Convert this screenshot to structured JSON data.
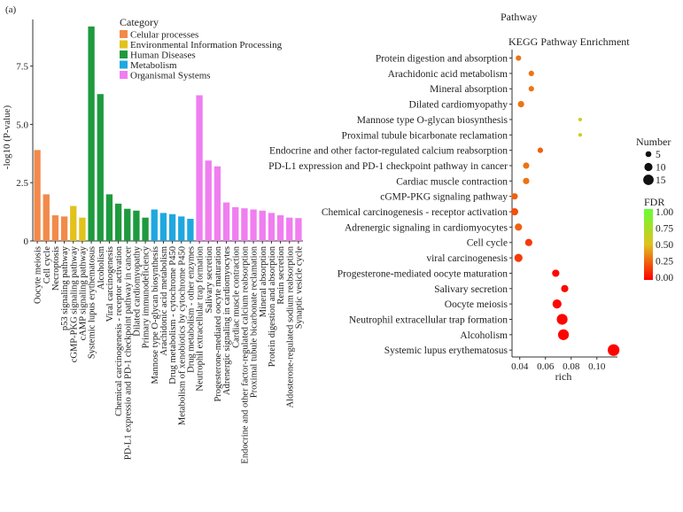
{
  "panel_label": "(a)",
  "colors": {
    "Celular processes": "#f28a4b",
    "Environmental Information Processing": "#e2c21b",
    "Human Diseases": "#1e9a3e",
    "Metabolism": "#1fa8e0",
    "Organismal Systems": "#f07ef0",
    "axis": "#333333"
  },
  "chart_data": [
    {
      "type": "bar",
      "ylabel": "-log10 (P-value)",
      "ylim": [
        0,
        9.5
      ],
      "yticks": [
        0,
        2.5,
        5.0,
        7.5
      ],
      "legend_title": "Category",
      "legend_position": "top",
      "grid": false,
      "categories": [
        "Oocyte meiosis",
        "Cell cycle",
        "Necroptosis",
        "p53 signaling pathway",
        "cGMP-PKG signaling pathway",
        "cAMP signaling pathway",
        "Systemic lupus erythematosus",
        "Alcoholism",
        "Viral carcinogenesis",
        "Chemical carcinogenesis - receptor activation",
        "PD-L1 expressio and PD-1 checkpoint pathway in cancer",
        "Dilated cardiomyopathy",
        "Primary immunodeficiency",
        "Mannose type O-glycan biosynthesis",
        "Arachidonic acid metabolism",
        "Drug metabolism - cytochrome P450",
        "Metabolism of xenobiotics by cytochrome P450",
        "Drug metabolism - other enzymes",
        "Neutrophil extracellular trap formation",
        "Salivary secretion",
        "Progesterone-mediated oocyte maturation",
        "Adrenergic signaling in cardiomyocytes",
        "Cardiac muscle contraction",
        "Endocrine and other factor-regulated calcium reabsorption",
        "Proximal tubule bicarbonate reclamation",
        "Mineral absorption",
        "Protein digestion and absorption",
        "Renin secretion",
        "Aldosterone-regulated sodium reabsorption",
        "Synaptic vesicle cycle"
      ],
      "values": [
        3.9,
        2.0,
        1.1,
        1.05,
        1.5,
        1.0,
        9.2,
        6.3,
        2.0,
        1.6,
        1.38,
        1.3,
        1.0,
        1.35,
        1.2,
        1.15,
        1.05,
        0.95,
        6.25,
        3.45,
        3.2,
        1.65,
        1.45,
        1.4,
        1.35,
        1.3,
        1.2,
        1.1,
        1.0,
        0.98
      ],
      "groups": [
        "Celular processes",
        "Celular processes",
        "Celular processes",
        "Celular processes",
        "Environmental Information Processing",
        "Environmental Information Processing",
        "Human Diseases",
        "Human Diseases",
        "Human Diseases",
        "Human Diseases",
        "Human Diseases",
        "Human Diseases",
        "Human Diseases",
        "Metabolism",
        "Metabolism",
        "Metabolism",
        "Metabolism",
        "Metabolism",
        "Organismal Systems",
        "Organismal Systems",
        "Organismal Systems",
        "Organismal Systems",
        "Organismal Systems",
        "Organismal Systems",
        "Organismal Systems",
        "Organismal Systems",
        "Organismal Systems",
        "Organismal Systems",
        "Organismal Systems",
        "Organismal Systems"
      ],
      "legend": [
        "Celular processes",
        "Environmental Information Processing",
        "Human Diseases",
        "Metabolism",
        "Organismal Systems"
      ]
    },
    {
      "type": "scatter",
      "header": "Pathway",
      "title": "KEGG Pathway Enrichment",
      "xlabel": "rich",
      "xlim": [
        0.034,
        0.116
      ],
      "xticks": [
        0.04,
        0.06,
        0.08,
        0.1
      ],
      "xtick_labels": [
        "0.04",
        "0.06",
        "0.08",
        "0.10"
      ],
      "grid": false,
      "categories": [
        "Protein digestion and absorption",
        "Arachidonic acid metabolism",
        "Mineral absorption",
        "Dilated cardiomyopathy",
        "Mannose type O-glycan biosynthesis",
        "Proximal tubule bicarbonate reclamation",
        "Endocrine and other factor-regulated calcium reabsorption",
        "PD-L1 expression and PD-1 checkpoint pathway in cancer",
        "Cardiac muscle contraction",
        "cGMP-PKG signaling pathway",
        "Chemical carcinogenesis - receptor activation",
        "Adrenergic signaling in cardiomyocytes",
        "Cell cycle",
        "viral carcinogenesis",
        "Progesterone-mediated oocyte maturation",
        "Salivary secretion",
        "Oocyte meiosis",
        "Neutrophil extracellular trap formation",
        "Alcoholism",
        "Systemic lupus erythematosus"
      ],
      "x": [
        0.039,
        0.049,
        0.049,
        0.041,
        0.087,
        0.087,
        0.056,
        0.045,
        0.045,
        0.036,
        0.036,
        0.039,
        0.047,
        0.039,
        0.068,
        0.075,
        0.069,
        0.073,
        0.074,
        0.113
      ],
      "number": [
        4,
        4,
        4,
        5,
        2,
        2,
        4,
        5,
        5,
        5,
        6,
        6,
        6,
        7,
        6,
        6,
        8,
        10,
        10,
        11
      ],
      "fdr": [
        0.3,
        0.3,
        0.3,
        0.3,
        0.55,
        0.55,
        0.25,
        0.3,
        0.3,
        0.25,
        0.2,
        0.25,
        0.15,
        0.15,
        0.02,
        0.02,
        0.02,
        0.01,
        0.01,
        0.01
      ],
      "size_legend": {
        "title": "Number",
        "values": [
          5,
          10,
          15
        ],
        "labels": [
          "5",
          "10",
          "15"
        ]
      },
      "color_legend": {
        "title": "FDR",
        "range": [
          0,
          1
        ],
        "ticks": [
          "1.00",
          "0.75",
          "0.50",
          "0.25",
          "0.00"
        ],
        "colors": [
          "#fe0000",
          "#e0c21f",
          "#66ff33"
        ]
      }
    }
  ]
}
